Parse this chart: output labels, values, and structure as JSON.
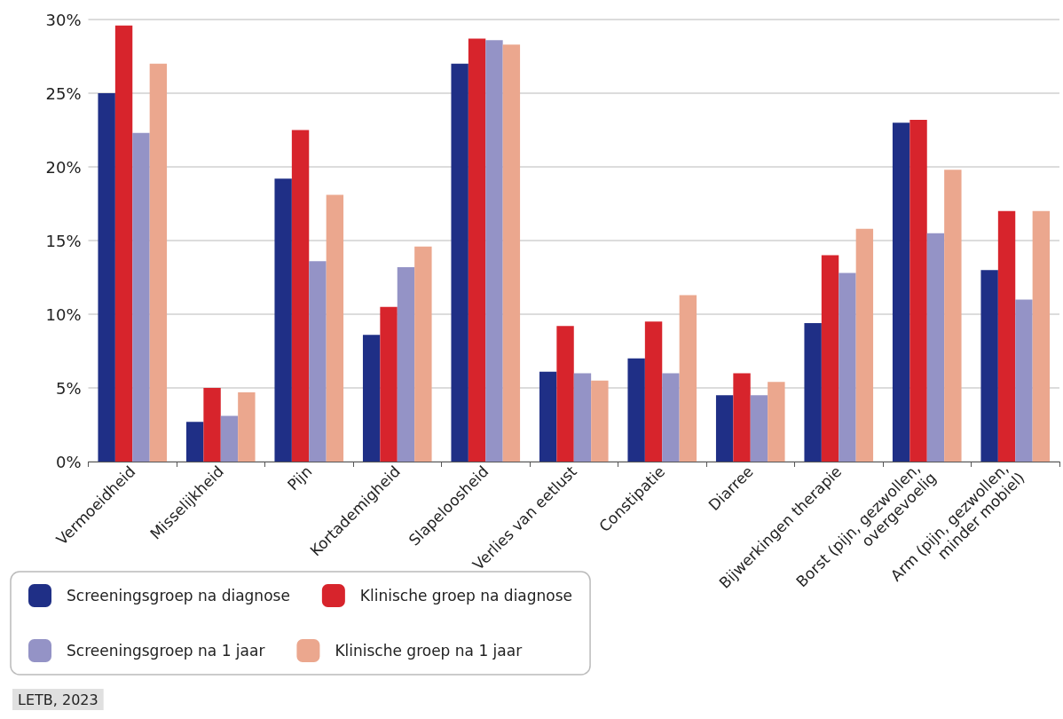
{
  "chart_data": {
    "type": "bar",
    "categories": [
      "Vermoeidheid",
      "Misselijkheid",
      "Pijn",
      "Kortademigheid",
      "Slapeloosheid",
      "Verlies van eetlust",
      "Constipatie",
      "Diarree",
      "Bijwerkingen therapie",
      "Borst (pijn, gezwollen, overgevoelig",
      "Arm (pijn, gezwollen, minder mobiel)"
    ],
    "series": [
      {
        "name": "Screeningsgroep na diagnose",
        "color": "#1f2f86",
        "values": [
          25.0,
          2.7,
          19.2,
          8.6,
          27.0,
          6.1,
          7.0,
          4.5,
          9.4,
          23.0,
          13.0
        ]
      },
      {
        "name": "Klinische groep na diagnose",
        "color": "#d7242c",
        "values": [
          29.6,
          5.0,
          22.5,
          10.5,
          28.7,
          9.2,
          9.5,
          6.0,
          14.0,
          23.2,
          17.0
        ]
      },
      {
        "name": "Screeningsgroep na 1 jaar",
        "color": "#9493c6",
        "values": [
          22.3,
          3.1,
          13.6,
          13.2,
          28.6,
          6.0,
          6.0,
          4.5,
          12.8,
          15.5,
          11.0
        ]
      },
      {
        "name": "Klinische groep na 1 jaar",
        "color": "#eba78e",
        "values": [
          27.0,
          4.7,
          18.1,
          14.6,
          28.3,
          5.5,
          11.3,
          5.4,
          15.8,
          19.8,
          17.0
        ]
      }
    ],
    "ylim": [
      0,
      30
    ],
    "yticks": [
      {
        "value": 0,
        "label": "0%"
      },
      {
        "value": 5,
        "label": "5%"
      },
      {
        "value": 10,
        "label": "10%"
      },
      {
        "value": 15,
        "label": "15%"
      },
      {
        "value": 20,
        "label": "20%"
      },
      {
        "value": 25,
        "label": "25%"
      },
      {
        "value": 30,
        "label": "30%"
      }
    ],
    "grid": "y",
    "legend": "bottom left",
    "annotations": [
      "LETB, 2023"
    ]
  }
}
